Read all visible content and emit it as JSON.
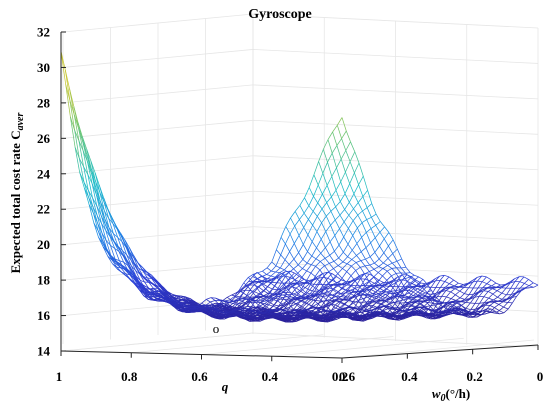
{
  "chart_data": {
    "type": "surface",
    "title": "Gyroscope",
    "xlabel": "q",
    "ylabel_w": "w",
    "ylabel_w_sub": "0",
    "ylabel_w_unit": "(°/h)",
    "zlabel": "Expected total cost rate C",
    "zlabel_sub": "aver",
    "q_ticks": [
      "1",
      "0.8",
      "0.6",
      "0.4",
      "0.2"
    ],
    "w_ticks": [
      "0.6",
      "0.4",
      "0.2",
      "0"
    ],
    "z_ticks": [
      "14",
      "16",
      "18",
      "20",
      "22",
      "24",
      "26",
      "28",
      "30",
      "32"
    ],
    "q_range": [
      0.2,
      1.0
    ],
    "w_range": [
      0.0,
      0.6
    ],
    "z_range": [
      14,
      32
    ],
    "colormap": [
      "#2a1a8c",
      "#2d3fd6",
      "#1f86e6",
      "#1cbcc9",
      "#62c47a",
      "#c6c634"
    ],
    "surface_samples": {
      "q": [
        1.0,
        0.95,
        0.9,
        0.8,
        0.7,
        0.6,
        0.5,
        0.4,
        0.3,
        0.2
      ],
      "w": [
        0.6,
        0.5,
        0.4,
        0.3,
        0.2,
        0.1,
        0.0
      ],
      "z_at_w_0_6": [
        30.8,
        24.5,
        20.5,
        17.8,
        16.9,
        16.8,
        17.5,
        19.5,
        23.5,
        27.8
      ],
      "z_min_region": 15.3,
      "z_far_edge_w_0": 18.3
    },
    "optimum_marker": "o",
    "marker_color": "#d04020",
    "grid": true
  }
}
